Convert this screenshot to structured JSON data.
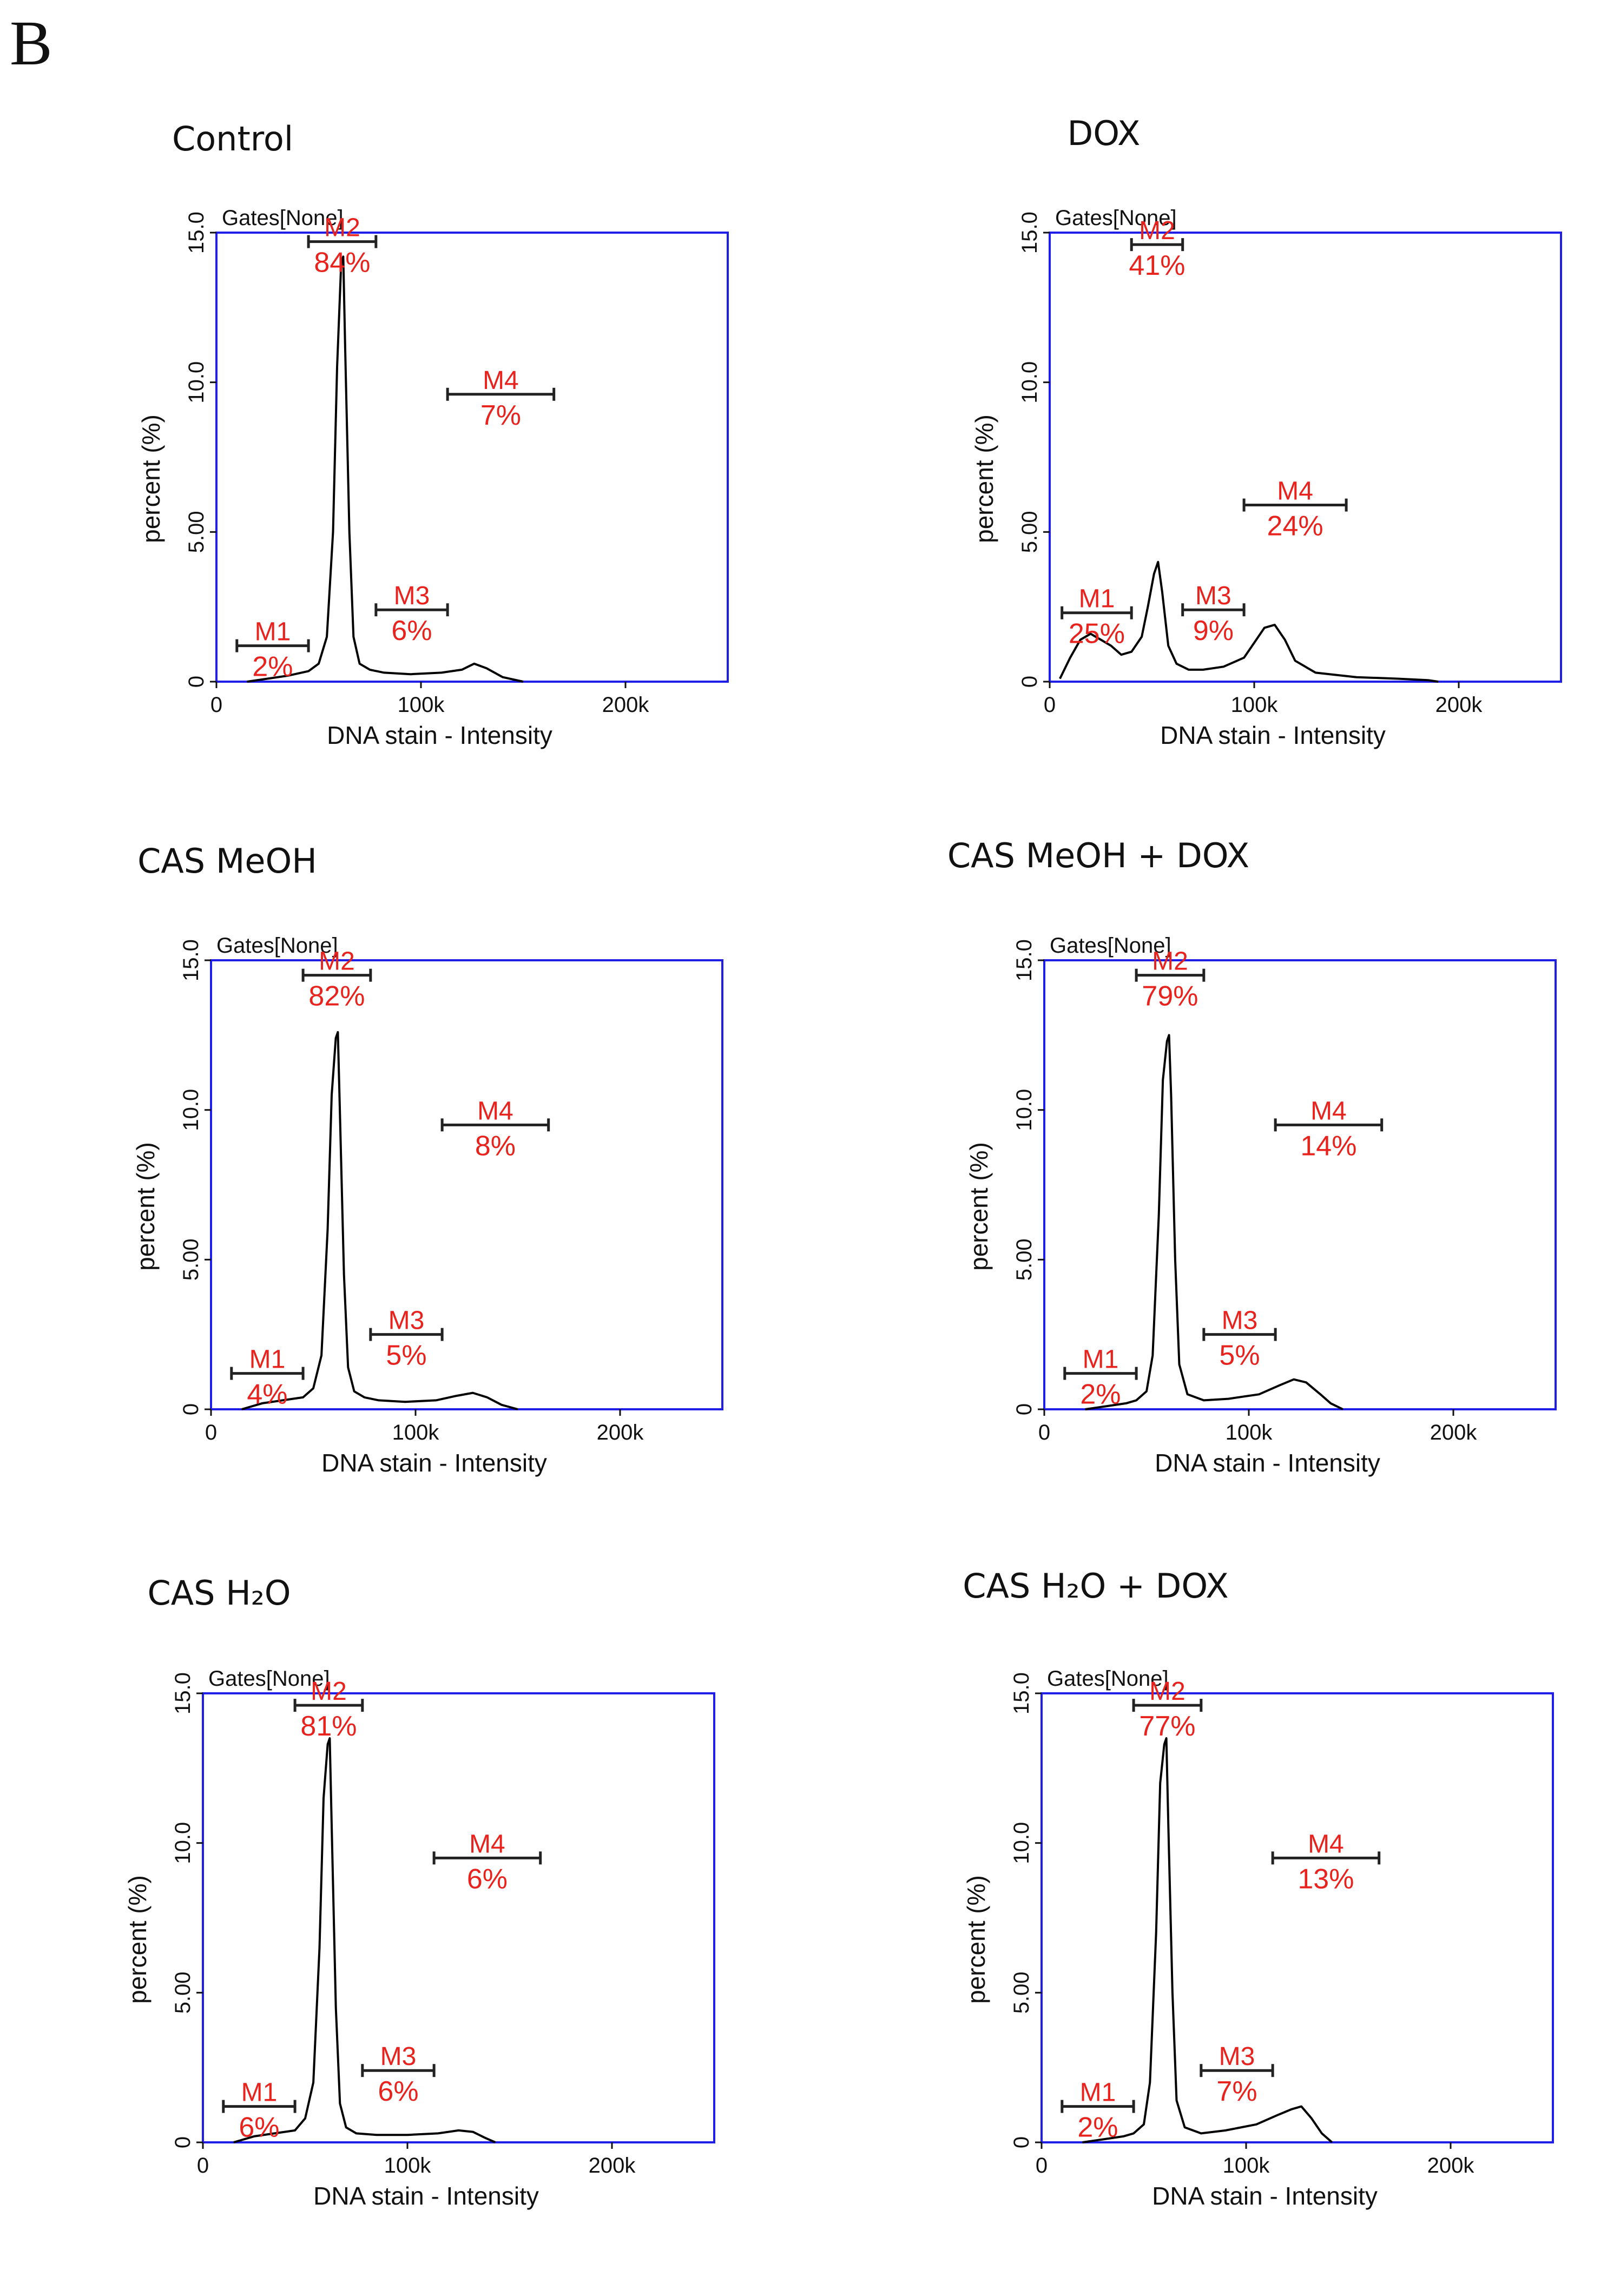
{
  "panel_letter": "B",
  "chart_data": [
    {
      "type": "line",
      "title": "Control",
      "gates_label": "Gates[None]",
      "xlabel": "DNA stain - Intensity",
      "ylabel": "percent (%)",
      "x_ticks": [
        "0",
        "100k",
        "200k"
      ],
      "y_ticks": [
        "0",
        "5.00",
        "10.0",
        "15.0"
      ],
      "xlim": [
        0,
        250000
      ],
      "ylim": [
        0,
        15
      ],
      "markers": [
        {
          "name": "M1",
          "pct": "2%",
          "start": 10000,
          "end": 45000,
          "level": 1.2
        },
        {
          "name": "M2",
          "pct": "84%",
          "start": 45000,
          "end": 78000,
          "level": 14.7
        },
        {
          "name": "M3",
          "pct": "6%",
          "start": 78000,
          "end": 113000,
          "level": 2.4
        },
        {
          "name": "M4",
          "pct": "7%",
          "start": 113000,
          "end": 165000,
          "level": 9.6
        }
      ],
      "series": {
        "x": [
          15000,
          25000,
          35000,
          45000,
          50000,
          54000,
          57000,
          59000,
          61000,
          62000,
          63000,
          65000,
          67000,
          70000,
          75000,
          82000,
          95000,
          110000,
          120000,
          126000,
          132000,
          140000,
          150000
        ],
        "y": [
          0.0,
          0.1,
          0.2,
          0.35,
          0.6,
          1.5,
          5.0,
          10.5,
          14.0,
          14.2,
          11.0,
          5.0,
          1.5,
          0.6,
          0.4,
          0.3,
          0.25,
          0.3,
          0.4,
          0.6,
          0.45,
          0.15,
          0.0
        ]
      }
    },
    {
      "type": "line",
      "title": "DOX",
      "gates_label": "Gates[None]",
      "xlabel": "DNA stain - Intensity",
      "ylabel": "percent (%)",
      "x_ticks": [
        "0",
        "100k",
        "200k"
      ],
      "y_ticks": [
        "0",
        "5.00",
        "10.0",
        "15.0"
      ],
      "xlim": [
        0,
        250000
      ],
      "ylim": [
        0,
        15
      ],
      "markers": [
        {
          "name": "M1",
          "pct": "25%",
          "start": 6000,
          "end": 40000,
          "level": 2.3
        },
        {
          "name": "M2",
          "pct": "41%",
          "start": 40000,
          "end": 65000,
          "level": 14.6
        },
        {
          "name": "M3",
          "pct": "9%",
          "start": 65000,
          "end": 95000,
          "level": 2.4
        },
        {
          "name": "M4",
          "pct": "24%",
          "start": 95000,
          "end": 145000,
          "level": 5.9
        }
      ],
      "series": {
        "x": [
          5000,
          10000,
          15000,
          20000,
          25000,
          30000,
          35000,
          40000,
          45000,
          48000,
          51000,
          53000,
          55000,
          58000,
          62000,
          68000,
          75000,
          85000,
          95000,
          100000,
          105000,
          110000,
          115000,
          120000,
          130000,
          150000,
          170000,
          185000,
          190000
        ],
        "y": [
          0.1,
          0.8,
          1.4,
          1.6,
          1.4,
          1.2,
          0.9,
          1.0,
          1.5,
          2.5,
          3.6,
          4.0,
          3.0,
          1.2,
          0.6,
          0.4,
          0.4,
          0.5,
          0.8,
          1.3,
          1.8,
          1.9,
          1.4,
          0.7,
          0.3,
          0.15,
          0.1,
          0.05,
          0.0
        ]
      }
    },
    {
      "type": "line",
      "title": "CAS MeOH",
      "gates_label": "Gates[None]",
      "xlabel": "DNA stain - Intensity",
      "ylabel": "percent (%)",
      "x_ticks": [
        "0",
        "100k",
        "200k"
      ],
      "y_ticks": [
        "0",
        "5.00",
        "10.0",
        "15.0"
      ],
      "xlim": [
        0,
        250000
      ],
      "ylim": [
        0,
        15
      ],
      "markers": [
        {
          "name": "M1",
          "pct": "4%",
          "start": 10000,
          "end": 45000,
          "level": 1.2
        },
        {
          "name": "M2",
          "pct": "82%",
          "start": 45000,
          "end": 78000,
          "level": 14.5
        },
        {
          "name": "M3",
          "pct": "5%",
          "start": 78000,
          "end": 113000,
          "level": 2.5
        },
        {
          "name": "M4",
          "pct": "8%",
          "start": 113000,
          "end": 165000,
          "level": 9.5
        }
      ],
      "series": {
        "x": [
          15000,
          25000,
          35000,
          45000,
          50000,
          54000,
          57000,
          59000,
          61000,
          62000,
          63000,
          65000,
          67000,
          70000,
          75000,
          82000,
          95000,
          110000,
          120000,
          128000,
          135000,
          142000,
          150000
        ],
        "y": [
          0.0,
          0.2,
          0.3,
          0.4,
          0.7,
          1.8,
          6.0,
          10.5,
          12.4,
          12.6,
          10.0,
          4.5,
          1.4,
          0.6,
          0.4,
          0.3,
          0.25,
          0.3,
          0.45,
          0.55,
          0.4,
          0.15,
          0.0
        ]
      }
    },
    {
      "type": "line",
      "title": "CAS MeOH + DOX",
      "gates_label": "Gates[None]",
      "xlabel": "DNA stain - Intensity",
      "ylabel": "percent (%)",
      "x_ticks": [
        "0",
        "100k",
        "200k"
      ],
      "y_ticks": [
        "0",
        "5.00",
        "10.0",
        "15.0"
      ],
      "xlim": [
        0,
        250000
      ],
      "ylim": [
        0,
        15
      ],
      "markers": [
        {
          "name": "M1",
          "pct": "2%",
          "start": 10000,
          "end": 45000,
          "level": 1.2
        },
        {
          "name": "M2",
          "pct": "79%",
          "start": 45000,
          "end": 78000,
          "level": 14.5
        },
        {
          "name": "M3",
          "pct": "5%",
          "start": 78000,
          "end": 113000,
          "level": 2.5
        },
        {
          "name": "M4",
          "pct": "14%",
          "start": 113000,
          "end": 165000,
          "level": 9.5
        }
      ],
      "series": {
        "x": [
          20000,
          30000,
          40000,
          45000,
          50000,
          53000,
          56000,
          58000,
          60000,
          61000,
          62000,
          64000,
          66000,
          70000,
          78000,
          90000,
          105000,
          115000,
          122000,
          128000,
          135000,
          140000,
          146000
        ],
        "y": [
          0.0,
          0.1,
          0.2,
          0.3,
          0.6,
          1.8,
          6.5,
          11.0,
          12.3,
          12.5,
          10.5,
          5.0,
          1.5,
          0.5,
          0.3,
          0.35,
          0.5,
          0.8,
          1.0,
          0.9,
          0.5,
          0.2,
          0.0
        ]
      }
    },
    {
      "type": "line",
      "title": "CAS H₂O",
      "gates_label": "Gates[None]",
      "xlabel": "DNA stain - Intensity",
      "ylabel": "percent (%)",
      "x_ticks": [
        "0",
        "100k",
        "200k"
      ],
      "y_ticks": [
        "0",
        "5.00",
        "10.0",
        "15.0"
      ],
      "xlim": [
        0,
        250000
      ],
      "ylim": [
        0,
        15
      ],
      "markers": [
        {
          "name": "M1",
          "pct": "6%",
          "start": 10000,
          "end": 45000,
          "level": 1.2
        },
        {
          "name": "M2",
          "pct": "81%",
          "start": 45000,
          "end": 78000,
          "level": 14.6
        },
        {
          "name": "M3",
          "pct": "6%",
          "start": 78000,
          "end": 113000,
          "level": 2.4
        },
        {
          "name": "M4",
          "pct": "6%",
          "start": 113000,
          "end": 165000,
          "level": 9.5
        }
      ],
      "series": {
        "x": [
          15000,
          25000,
          35000,
          45000,
          50000,
          54000,
          57000,
          59000,
          61000,
          62000,
          63000,
          65000,
          67000,
          70000,
          75000,
          85000,
          100000,
          115000,
          125000,
          132000,
          138000,
          143000
        ],
        "y": [
          0.0,
          0.2,
          0.3,
          0.4,
          0.8,
          2.0,
          6.5,
          11.5,
          13.3,
          13.5,
          10.5,
          4.5,
          1.3,
          0.5,
          0.3,
          0.25,
          0.25,
          0.3,
          0.4,
          0.35,
          0.15,
          0.0
        ]
      }
    },
    {
      "type": "line",
      "title": "CAS H₂O + DOX",
      "gates_label": "Gates[None]",
      "xlabel": "DNA stain - Intensity",
      "ylabel": "percent (%)",
      "x_ticks": [
        "0",
        "100k",
        "200k"
      ],
      "y_ticks": [
        "0",
        "5.00",
        "10.0",
        "15.0"
      ],
      "xlim": [
        0,
        250000
      ],
      "ylim": [
        0,
        15
      ],
      "markers": [
        {
          "name": "M1",
          "pct": "2%",
          "start": 10000,
          "end": 45000,
          "level": 1.2
        },
        {
          "name": "M2",
          "pct": "77%",
          "start": 45000,
          "end": 78000,
          "level": 14.6
        },
        {
          "name": "M3",
          "pct": "7%",
          "start": 78000,
          "end": 113000,
          "level": 2.4
        },
        {
          "name": "M4",
          "pct": "13%",
          "start": 113000,
          "end": 165000,
          "level": 9.5
        }
      ],
      "series": {
        "x": [
          20000,
          30000,
          40000,
          45000,
          50000,
          53000,
          56000,
          58000,
          60000,
          61000,
          62000,
          64000,
          66000,
          70000,
          78000,
          90000,
          105000,
          115000,
          122000,
          127000,
          132000,
          137000,
          142000
        ],
        "y": [
          0.0,
          0.1,
          0.2,
          0.3,
          0.6,
          2.0,
          7.0,
          12.0,
          13.3,
          13.5,
          10.5,
          5.0,
          1.4,
          0.5,
          0.3,
          0.4,
          0.6,
          0.9,
          1.1,
          1.2,
          0.8,
          0.3,
          0.0
        ]
      }
    }
  ]
}
